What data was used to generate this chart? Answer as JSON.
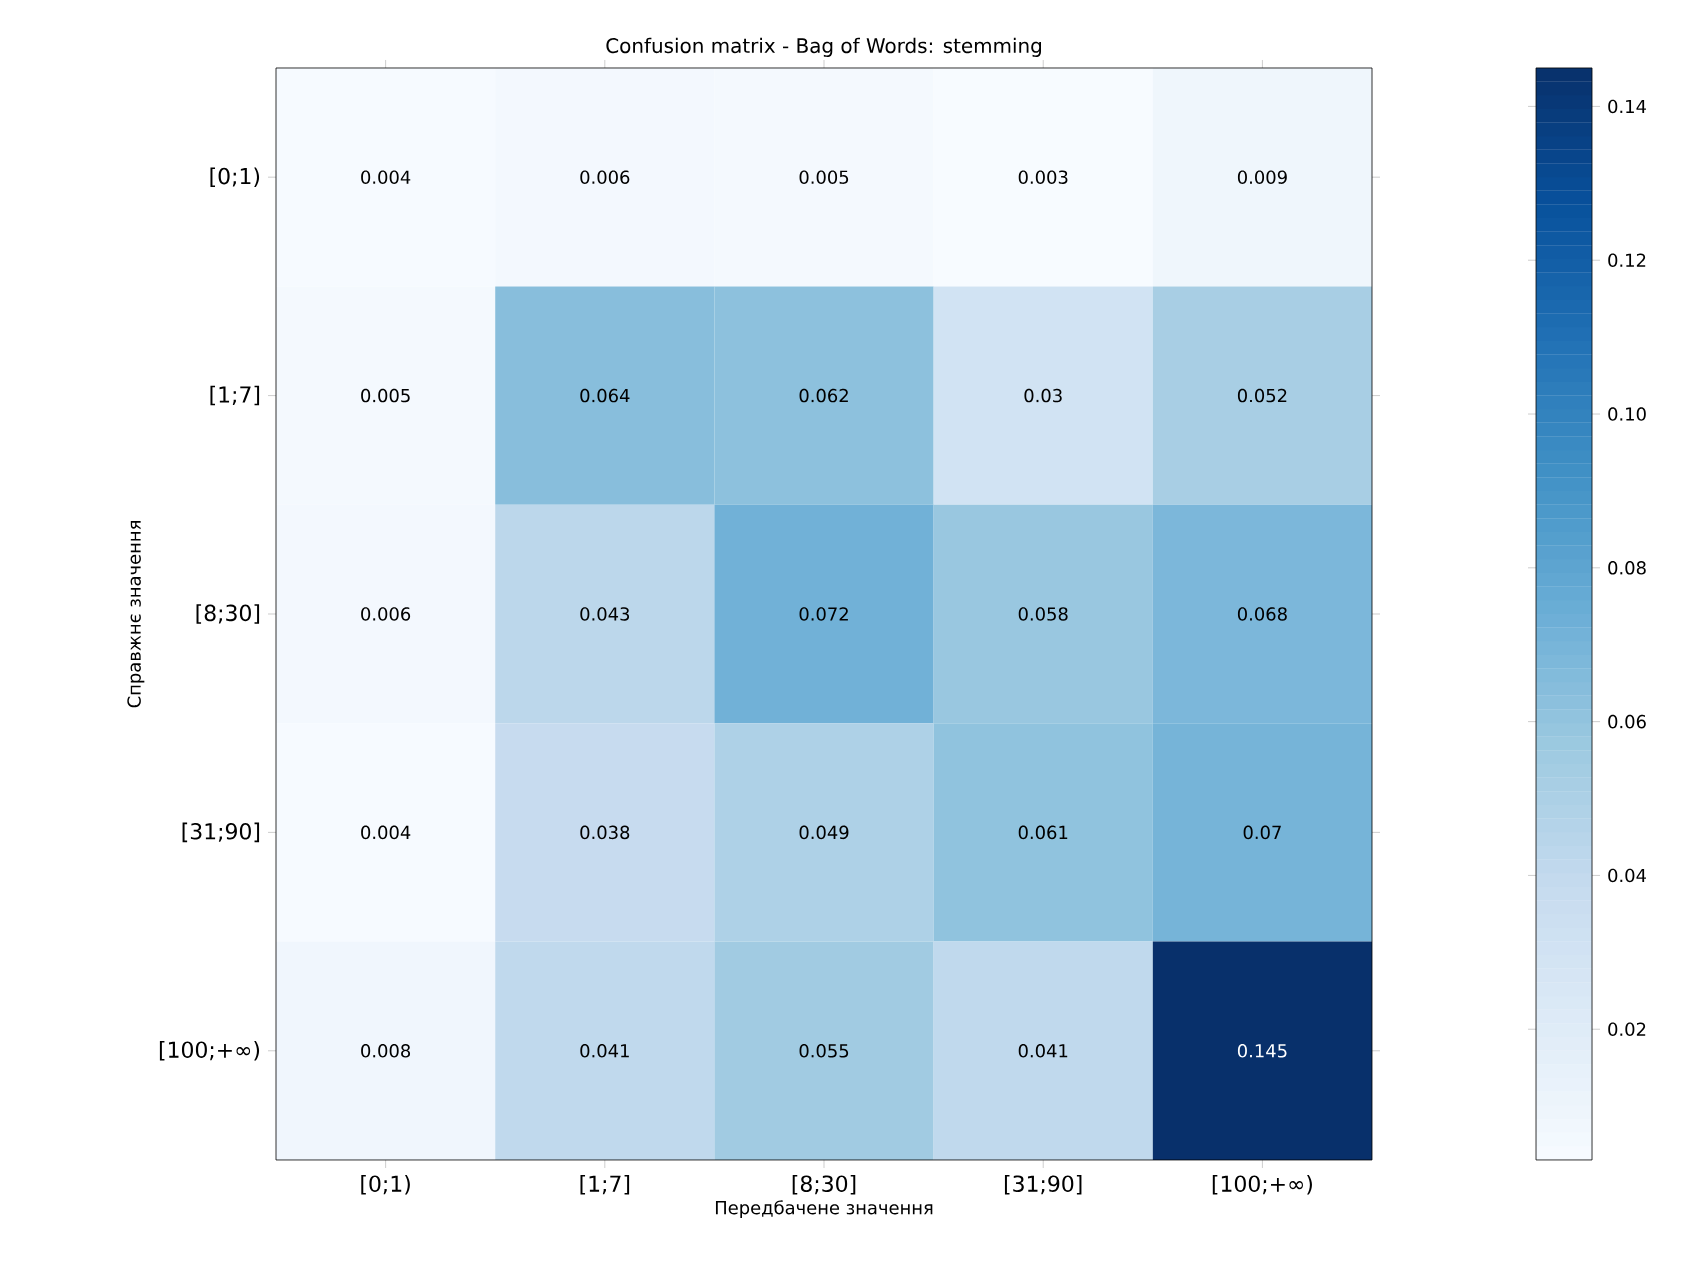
{
  "chart_data": {
    "type": "heatmap",
    "title": "Confusion matrix - Bag of Words: stemming",
    "xlabel": "Передбачене значення",
    "ylabel": "Справжнє значення",
    "categories": [
      "[0;1)",
      "[1;7]",
      "[8;30]",
      "[31;90]",
      "[100;+∞)"
    ],
    "y_categories": [
      "[0;1)",
      "[1;7]",
      "[8;30]",
      "[31;90]",
      "[100;+∞)"
    ],
    "cells": [
      [
        0.004,
        0.006,
        0.005,
        0.003,
        0.009
      ],
      [
        0.005,
        0.064,
        0.062,
        0.03,
        0.052
      ],
      [
        0.006,
        0.043,
        0.072,
        0.058,
        0.068
      ],
      [
        0.004,
        0.038,
        0.049,
        0.061,
        0.07
      ],
      [
        0.008,
        0.041,
        0.055,
        0.041,
        0.145
      ]
    ],
    "data_labels": true,
    "clim": [
      0.003,
      0.145
    ],
    "cticks": [
      0.02,
      0.04,
      0.06,
      0.08,
      {
        "value": 0.1,
        "label": "0.10"
      },
      0.12,
      0.14
    ]
  }
}
